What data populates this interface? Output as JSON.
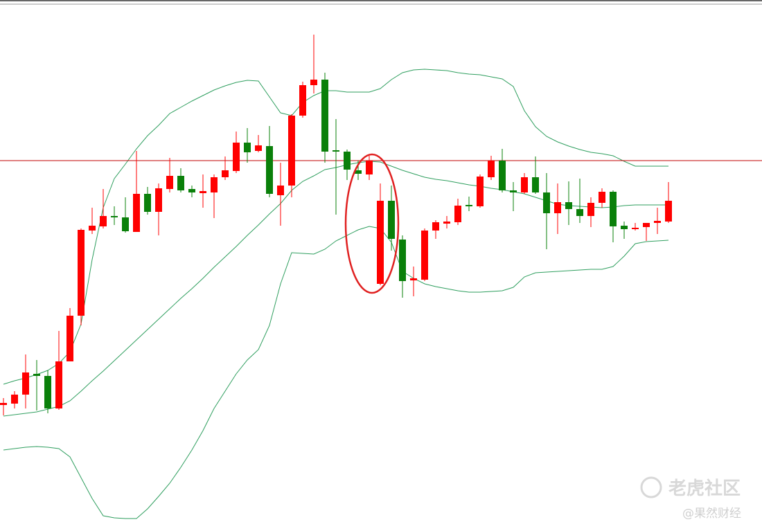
{
  "chart_data": {
    "type": "candlestick",
    "up_color": "#ff0000",
    "down_color": "#0a800a",
    "open": [
      182,
      184,
      197,
      227,
      224,
      177,
      245,
      311,
      434,
      440,
      455,
      453,
      432,
      487,
      461,
      494,
      513,
      494,
      488,
      489,
      511,
      520,
      561,
      549,
      556,
      485,
      499,
      600,
      644,
      652,
      550,
      548,
      521,
      515,
      357,
      477,
      421,
      362,
      363,
      434,
      444,
      446,
      471,
      469,
      511,
      535,
      492,
      489,
      511,
      489,
      459,
      475,
      465,
      455,
      474,
      490,
      441,
      437,
      439,
      445,
      447
    ],
    "close": [
      185,
      197,
      229,
      224,
      177,
      245,
      311,
      435,
      441,
      455,
      453,
      433,
      487,
      461,
      495,
      513,
      492,
      489,
      491,
      511,
      521,
      561,
      547,
      557,
      487,
      499,
      600,
      644,
      652,
      548,
      548,
      522,
      516,
      535,
      477,
      422,
      361,
      365,
      434,
      446,
      447,
      470,
      469,
      512,
      535,
      492,
      489,
      511,
      489,
      459,
      475,
      465,
      455,
      474,
      490,
      440,
      436,
      438,
      445,
      448,
      477
    ],
    "high": [
      192,
      202,
      255,
      247,
      232,
      289,
      322,
      437,
      467,
      494,
      469,
      482,
      549,
      497,
      502,
      539,
      524,
      499,
      515,
      515,
      541,
      577,
      582,
      572,
      585,
      532,
      602,
      649,
      717,
      662,
      595,
      551,
      535,
      542,
      502,
      499,
      427,
      382,
      437,
      449,
      455,
      480,
      483,
      515,
      542,
      552,
      504,
      517,
      541,
      517,
      502,
      505,
      509,
      482,
      495,
      492,
      447,
      445,
      445,
      467,
      504
    ],
    "low": [
      167,
      177,
      177,
      174,
      170,
      175,
      245,
      297,
      429,
      437,
      442,
      431,
      432,
      457,
      427,
      489,
      489,
      482,
      467,
      452,
      507,
      517,
      532,
      547,
      482,
      441,
      482,
      597,
      632,
      532,
      457,
      507,
      507,
      507,
      355,
      405,
      337,
      339,
      361,
      422,
      437,
      442,
      462,
      467,
      507,
      489,
      462,
      487,
      487,
      407,
      429,
      442,
      445,
      439,
      467,
      417,
      422,
      434,
      419,
      429,
      445
    ],
    "bands": {
      "color": "#2e9e5e",
      "upper": [
        212,
        217,
        221,
        226,
        232,
        242,
        259,
        299,
        392,
        467,
        509,
        530,
        552,
        571,
        586,
        603,
        612,
        621,
        629,
        637,
        643,
        648,
        651,
        650,
        627,
        604,
        600,
        619,
        629,
        636,
        636,
        634,
        634,
        634,
        639,
        652,
        662,
        666,
        667,
        666,
        665,
        662,
        660,
        659,
        656,
        653,
        642,
        607,
        584,
        570,
        562,
        556,
        551,
        547,
        545,
        542,
        534,
        527,
        527,
        527,
        527
      ],
      "middle": [
        166,
        168,
        170,
        172,
        176,
        180,
        188,
        202,
        217,
        231,
        246,
        261,
        276,
        291,
        306,
        321,
        336,
        350,
        365,
        381,
        396,
        411,
        427,
        442,
        458,
        473,
        492,
        505,
        513,
        522,
        525,
        529,
        532,
        534,
        533,
        527,
        521,
        516,
        511,
        508,
        506,
        503,
        500,
        498,
        495,
        493,
        490,
        487,
        482,
        477,
        472,
        470,
        469,
        468,
        467,
        468,
        470,
        471,
        471,
        471,
        471
      ],
      "lower": [
        117,
        119,
        121,
        122,
        121,
        119,
        107,
        77,
        47,
        22,
        19,
        18,
        18,
        32,
        50,
        69,
        92,
        117,
        145,
        177,
        202,
        227,
        247,
        262,
        297,
        357,
        402,
        401,
        400,
        407,
        419,
        427,
        435,
        440,
        437,
        417,
        375,
        365,
        357,
        353,
        350,
        347,
        345,
        345,
        346,
        347,
        352,
        367,
        373,
        374,
        375,
        376,
        377,
        378,
        378,
        382,
        397,
        415,
        418,
        419,
        420
      ]
    },
    "ylim": [
      0,
      767
    ],
    "reference_line": {
      "value": 535,
      "color": "#c00000"
    },
    "watermark": [
      "老虎社区",
      "@果然财经"
    ]
  }
}
